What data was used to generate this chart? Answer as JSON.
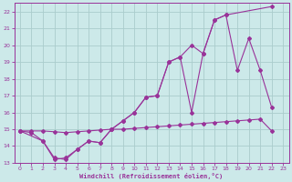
{
  "xlabel": "Windchill (Refroidissement éolien,°C)",
  "bg_color": "#cce9e9",
  "grid_color": "#aacccc",
  "line_color": "#993399",
  "xlim": [
    -0.5,
    23.5
  ],
  "ylim": [
    13,
    22.5
  ],
  "xticks": [
    0,
    1,
    2,
    3,
    4,
    5,
    6,
    7,
    8,
    9,
    10,
    11,
    12,
    13,
    14,
    15,
    16,
    17,
    18,
    19,
    20,
    21,
    22,
    23
  ],
  "yticks": [
    13,
    14,
    15,
    16,
    17,
    18,
    19,
    20,
    21,
    22
  ],
  "curve1_x": [
    0,
    1,
    2,
    3,
    4,
    5,
    6,
    7,
    8,
    9,
    10,
    11,
    12,
    13,
    14,
    15,
    16,
    17,
    18,
    22
  ],
  "curve1_y": [
    14.9,
    14.8,
    14.3,
    13.3,
    13.2,
    13.8,
    14.3,
    14.2,
    15.0,
    15.5,
    16.0,
    16.9,
    17.0,
    19.0,
    19.3,
    20.0,
    19.5,
    21.5,
    21.8,
    22.3
  ],
  "curve2_x": [
    0,
    1,
    2,
    3,
    4,
    5,
    6,
    7,
    8,
    9,
    10,
    11,
    12,
    13,
    14,
    15,
    16,
    17,
    18,
    19,
    20,
    21,
    22
  ],
  "curve2_y": [
    14.9,
    14.9,
    14.9,
    14.85,
    14.8,
    14.85,
    14.9,
    14.95,
    15.0,
    15.0,
    15.05,
    15.1,
    15.15,
    15.2,
    15.25,
    15.3,
    15.35,
    15.4,
    15.45,
    15.5,
    15.55,
    15.6,
    14.9
  ],
  "curve3_x": [
    0,
    2,
    3,
    4,
    5,
    6,
    7,
    8,
    9,
    10,
    11,
    12,
    13,
    14,
    15,
    16,
    17,
    18,
    19,
    20,
    21,
    22
  ],
  "curve3_y": [
    14.9,
    14.3,
    13.2,
    13.3,
    13.8,
    14.3,
    14.2,
    15.0,
    15.5,
    16.0,
    16.9,
    17.0,
    19.0,
    19.3,
    16.0,
    19.5,
    21.5,
    21.8,
    18.5,
    20.4,
    18.5,
    16.3
  ]
}
